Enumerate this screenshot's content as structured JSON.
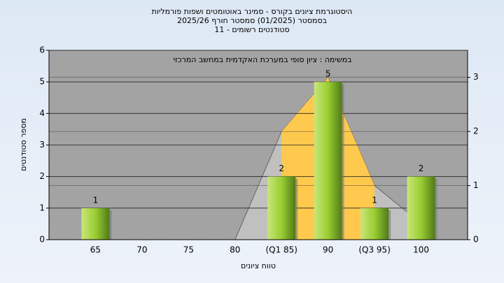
{
  "chart_data": {
    "type": "bar",
    "title": "היסטוגרמת ציונים בקורס - סמינר באוטומטים ושפות פורמליות",
    "subtitle": "בסמסטר  (01/2025)  סמסטר חורף 2025/26",
    "subtitle2": "סטודנטים רשומים - 11",
    "annotation": "במשימה : ציון סופי במערכת האקדמית במחשב המרכזי",
    "x_label": "טווח ציונים",
    "y_label": "מספר סטודנטים",
    "categories": [
      "65",
      "70",
      "75",
      "80",
      "(Q1 85)",
      "90",
      "(Q3 95)",
      "100"
    ],
    "series": [
      {
        "color": "#9acd32",
        "values": [
          1,
          0,
          0,
          0,
          2,
          5,
          1,
          2
        ]
      },
      {
        "color": "#c0c0c0",
        "axis": "y2",
        "values": [
          null,
          null,
          null,
          0,
          2,
          3,
          1,
          0.3
        ]
      },
      {
        "color": "#ffc94d",
        "axis": "y2",
        "values": [
          null,
          null,
          null,
          null,
          2,
          3,
          1,
          null
        ]
      }
    ],
    "ylim": [
      0,
      6
    ],
    "yticks": [
      0,
      1,
      2,
      3,
      4,
      5,
      6
    ],
    "y2lim": [
      0,
      3.5
    ],
    "y2ticks": [
      0,
      1,
      2,
      3
    ],
    "grid": true
  }
}
